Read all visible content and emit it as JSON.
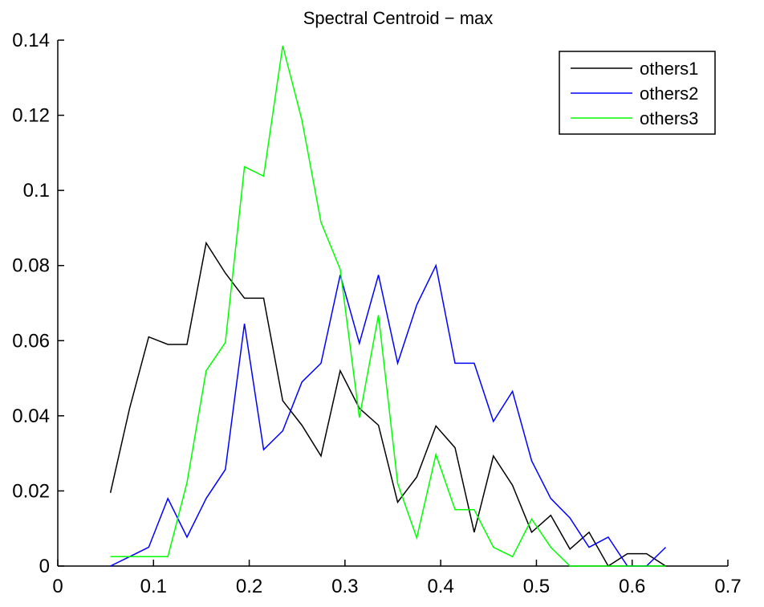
{
  "chart_data": {
    "type": "line",
    "title": "Spectral Centroid − max",
    "xlabel": "",
    "ylabel": "",
    "xlim": [
      0,
      0.7
    ],
    "ylim": [
      0,
      0.14
    ],
    "xticks": [
      "0",
      "0.1",
      "0.2",
      "0.3",
      "0.4",
      "0.5",
      "0.6",
      "0.7"
    ],
    "yticks": [
      "0",
      "0.02",
      "0.04",
      "0.06",
      "0.08",
      "0.1",
      "0.12",
      "0.14"
    ],
    "grid": false,
    "legend_position": "top-right",
    "x": [
      0.055,
      0.075,
      0.095,
      0.115,
      0.135,
      0.155,
      0.175,
      0.195,
      0.215,
      0.235,
      0.255,
      0.275,
      0.295,
      0.315,
      0.335,
      0.355,
      0.375,
      0.395,
      0.415,
      0.435,
      0.455,
      0.475,
      0.495,
      0.515,
      0.535,
      0.555,
      0.575,
      0.595,
      0.615,
      0.635
    ],
    "series": [
      {
        "name": "others1",
        "color": "#000000",
        "values": [
          0.0195,
          0.042,
          0.061,
          0.059,
          0.059,
          0.086,
          0.078,
          0.0713,
          0.0713,
          0.044,
          0.0375,
          0.0293,
          0.052,
          0.042,
          0.0375,
          0.017,
          0.0237,
          0.0373,
          0.0315,
          0.009,
          0.0293,
          0.0215,
          0.009,
          0.0135,
          0.0045,
          0.009,
          0.0,
          0.0033,
          0.0033,
          0.0
        ]
      },
      {
        "name": "others2",
        "color": "#0000ff",
        "values": [
          0.0,
          0.0025,
          0.005,
          0.018,
          0.0077,
          0.018,
          0.0257,
          0.0645,
          0.031,
          0.036,
          0.049,
          0.054,
          0.0775,
          0.0593,
          0.0775,
          0.054,
          0.0695,
          0.08,
          0.054,
          0.054,
          0.0385,
          0.0465,
          0.028,
          0.018,
          0.0128,
          0.005,
          0.0077,
          0.0,
          0.0,
          0.005
        ]
      },
      {
        "name": "others3",
        "color": "#00ff00",
        "values": [
          0.0025,
          0.0025,
          0.0025,
          0.0025,
          0.0222,
          0.052,
          0.0595,
          0.1063,
          0.1038,
          0.1385,
          0.1187,
          0.0915,
          0.079,
          0.0395,
          0.0668,
          0.022,
          0.0075,
          0.0297,
          0.015,
          0.015,
          0.005,
          0.0025,
          0.0125,
          0.005,
          0.0,
          0.0,
          0.0,
          0.0,
          0.0,
          0.0
        ]
      }
    ]
  }
}
